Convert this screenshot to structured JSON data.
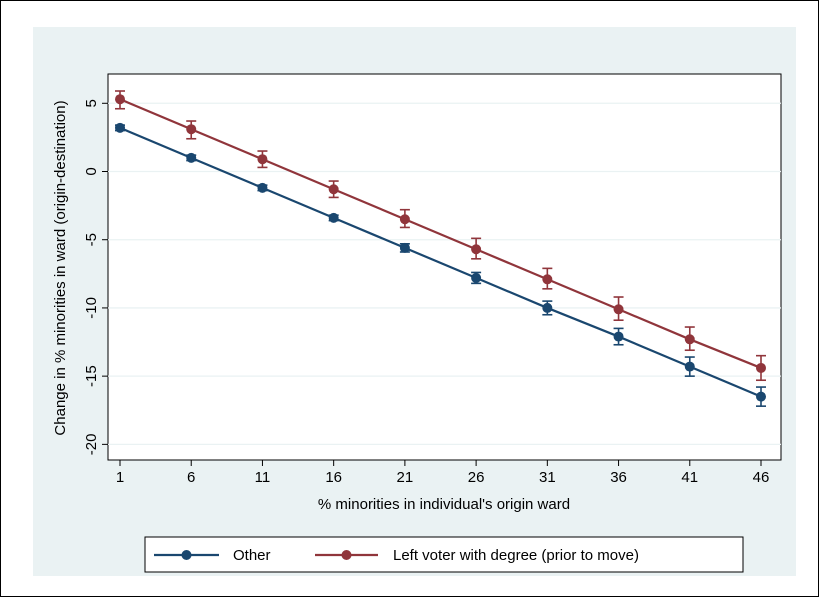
{
  "chart_data": {
    "type": "line",
    "title": "",
    "xlabel": "% minorities  in individual's origin ward",
    "ylabel": "Change in % minorities in ward (origin-destination)",
    "x": [
      1,
      6,
      11,
      16,
      21,
      26,
      31,
      36,
      41,
      46
    ],
    "xticks": [
      "1",
      "6",
      "11",
      "16",
      "21",
      "26",
      "31",
      "36",
      "41",
      "46"
    ],
    "yticks": [
      "5",
      "0",
      "-5",
      "-10",
      "-15",
      "-20"
    ],
    "ylim": [
      -21,
      7
    ],
    "grid": true,
    "legend_position": "bottom",
    "series": [
      {
        "name": "Other",
        "color": "#1a476f",
        "values": [
          3.2,
          1.0,
          -1.2,
          -3.4,
          -5.6,
          -7.8,
          -10.0,
          -12.1,
          -14.3,
          -16.5
        ],
        "ci_low": [
          3.0,
          0.8,
          -1.4,
          -3.6,
          -5.9,
          -8.2,
          -10.5,
          -12.7,
          -15.0,
          -17.2
        ],
        "ci_high": [
          3.4,
          1.2,
          -1.0,
          -3.2,
          -5.3,
          -7.4,
          -9.5,
          -11.5,
          -13.6,
          -15.8
        ]
      },
      {
        "name": "Left voter with degree (prior to move)",
        "color": "#90353b",
        "values": [
          5.3,
          3.1,
          0.9,
          -1.3,
          -3.5,
          -5.7,
          -7.9,
          -10.1,
          -12.3,
          -14.4
        ],
        "ci_low": [
          4.6,
          2.4,
          0.3,
          -1.9,
          -4.1,
          -6.4,
          -8.6,
          -10.9,
          -13.1,
          -15.3
        ],
        "ci_high": [
          5.9,
          3.7,
          1.5,
          -0.7,
          -2.8,
          -4.9,
          -7.1,
          -9.2,
          -11.4,
          -13.5
        ]
      }
    ]
  }
}
